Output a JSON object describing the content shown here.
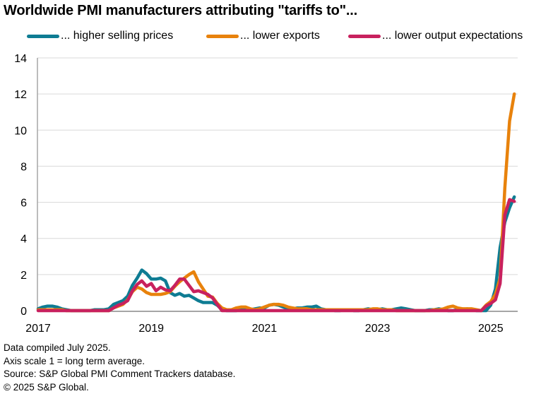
{
  "chart_data": {
    "type": "line",
    "title": "Worldwide PMI manufacturers attributing \"tariffs to\"...",
    "xlabel": "",
    "ylabel": "",
    "ylim": [
      0,
      14
    ],
    "yticks": [
      0,
      2,
      4,
      6,
      8,
      10,
      12,
      14
    ],
    "xticks": [
      "2017",
      "2019",
      "2021",
      "2023",
      "2025"
    ],
    "x_range": [
      "2017-01",
      "2025-06"
    ],
    "x_frequency": "monthly",
    "grid": "horizontal",
    "legend_position": "top",
    "series": [
      {
        "name": "... higher selling prices",
        "color": "#0E7C93",
        "values": [
          0.1,
          0.2,
          0.25,
          0.25,
          0.2,
          0.1,
          0.05,
          0.0,
          0.0,
          0.0,
          0.0,
          0.0,
          0.05,
          0.05,
          0.05,
          0.1,
          0.35,
          0.45,
          0.55,
          0.8,
          1.4,
          1.8,
          2.25,
          2.05,
          1.75,
          1.75,
          1.8,
          1.65,
          1.0,
          0.85,
          0.95,
          0.8,
          0.85,
          0.7,
          0.55,
          0.45,
          0.45,
          0.45,
          0.3,
          0.05,
          0.0,
          0.0,
          0.0,
          0.05,
          0.05,
          0.05,
          0.1,
          0.15,
          0.15,
          0.3,
          0.35,
          0.3,
          0.2,
          0.1,
          0.1,
          0.15,
          0.15,
          0.2,
          0.2,
          0.25,
          0.1,
          0.05,
          0.05,
          0.0,
          0.0,
          0.05,
          0.05,
          0.0,
          0.0,
          0.05,
          0.1,
          0.05,
          0.05,
          0.1,
          0.05,
          0.05,
          0.1,
          0.15,
          0.1,
          0.05,
          0.0,
          0.0,
          0.0,
          0.05,
          0.05,
          0.1,
          0.05,
          0.0,
          0.0,
          0.05,
          0.05,
          0.1,
          0.05,
          0.0,
          0.0,
          0.0,
          0.3,
          1.2,
          3.5,
          4.9,
          5.7,
          6.3
        ]
      },
      {
        "name": "... lower exports",
        "color": "#E8820C",
        "values": [
          0.05,
          0.05,
          0.05,
          0.05,
          0.05,
          0.05,
          0.0,
          0.0,
          0.0,
          0.0,
          0.0,
          0.0,
          0.0,
          0.0,
          0.0,
          0.0,
          0.15,
          0.25,
          0.35,
          0.6,
          1.05,
          1.3,
          1.2,
          1.0,
          0.9,
          0.9,
          0.9,
          0.95,
          1.05,
          1.35,
          1.6,
          1.8,
          2.0,
          2.15,
          1.6,
          1.2,
          0.8,
          0.75,
          0.4,
          0.15,
          0.05,
          0.05,
          0.15,
          0.2,
          0.2,
          0.1,
          0.05,
          0.1,
          0.2,
          0.3,
          0.35,
          0.35,
          0.3,
          0.2,
          0.15,
          0.1,
          0.1,
          0.1,
          0.05,
          0.05,
          0.05,
          0.05,
          0.05,
          0.05,
          0.05,
          0.05,
          0.05,
          0.05,
          0.05,
          0.05,
          0.05,
          0.1,
          0.1,
          0.05,
          0.05,
          0.05,
          0.0,
          0.0,
          0.0,
          0.0,
          0.0,
          0.0,
          0.0,
          0.0,
          0.05,
          0.05,
          0.1,
          0.2,
          0.25,
          0.15,
          0.1,
          0.1,
          0.1,
          0.05,
          0.0,
          0.3,
          0.5,
          0.9,
          1.8,
          6.8,
          10.5,
          12.0
        ]
      },
      {
        "name": "... lower output expectations",
        "color": "#C8215E",
        "values": [
          0.0,
          0.0,
          0.0,
          0.0,
          0.0,
          0.0,
          0.0,
          0.0,
          0.0,
          0.0,
          0.0,
          0.0,
          0.0,
          0.0,
          0.0,
          0.0,
          0.15,
          0.3,
          0.4,
          0.55,
          1.1,
          1.45,
          1.65,
          1.35,
          1.5,
          1.1,
          1.3,
          1.15,
          1.1,
          1.4,
          1.75,
          1.75,
          1.4,
          1.05,
          1.1,
          1.0,
          0.9,
          0.7,
          0.35,
          0.0,
          0.0,
          0.0,
          0.0,
          0.0,
          0.0,
          0.0,
          0.0,
          0.0,
          0.0,
          0.0,
          0.0,
          0.0,
          0.0,
          0.0,
          0.0,
          0.0,
          0.0,
          0.0,
          0.0,
          0.0,
          0.0,
          0.0,
          0.0,
          0.0,
          0.0,
          0.0,
          0.0,
          0.0,
          0.0,
          0.0,
          0.0,
          0.0,
          0.0,
          0.0,
          0.0,
          0.0,
          0.0,
          0.0,
          0.0,
          0.0,
          0.0,
          0.0,
          0.0,
          0.0,
          0.0,
          0.0,
          0.0,
          0.0,
          0.0,
          0.0,
          0.0,
          0.0,
          0.0,
          0.0,
          0.0,
          0.25,
          0.4,
          0.6,
          1.5,
          5.3,
          6.15,
          6.05
        ]
      }
    ]
  },
  "footnotes": [
    "Data compiled July 2025.",
    "Axis scale 1 = long term average.",
    "Source: S&P Global PMI Comment Trackers database.",
    "© 2025 S&P Global."
  ]
}
